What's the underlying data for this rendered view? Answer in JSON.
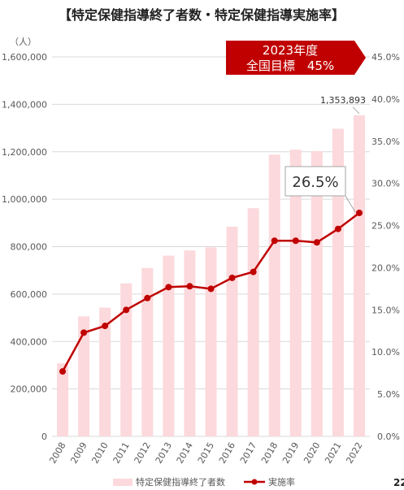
{
  "title": "【特定保健指導終了者数・特定保健指導実施率】",
  "left_unit": "（人）",
  "target_box": {
    "line1": "2023年度",
    "line2": "全国目標　45%"
  },
  "annotation": "26.5%",
  "page_number": "22",
  "colors": {
    "bar": "#fcd9dc",
    "line": "#c00000",
    "target_bg": "#c00000",
    "grid": "#d9d9d9"
  },
  "chart_data": {
    "type": "bar",
    "categories": [
      "2008",
      "2009",
      "2010",
      "2011",
      "2012",
      "2013",
      "2014",
      "2015",
      "2016",
      "2017",
      "2018",
      "2019",
      "2020",
      "2021",
      "2022"
    ],
    "series": [
      {
        "name": "特定保健指導終了者数",
        "type": "bar",
        "axis": "left",
        "values": [
          308000,
          506000,
          543000,
          645000,
          710000,
          762000,
          784000,
          797000,
          884000,
          962000,
          1188000,
          1209000,
          1203000,
          1297000,
          1353893
        ]
      },
      {
        "name": "実施率",
        "type": "line",
        "axis": "right",
        "values": [
          7.7,
          12.3,
          13.1,
          15.0,
          16.4,
          17.7,
          17.8,
          17.5,
          18.8,
          19.5,
          23.2,
          23.2,
          23.0,
          24.6,
          26.5
        ]
      }
    ],
    "left_axis": {
      "ylim": [
        0,
        1600000
      ],
      "ticks": [
        "0",
        "200,000",
        "400,000",
        "600,000",
        "800,000",
        "1,000,000",
        "1,200,000",
        "1,400,000",
        "1,600,000"
      ]
    },
    "right_axis": {
      "ylim": [
        0,
        45
      ],
      "ticks": [
        "0.0%",
        "5.0%",
        "10.0%",
        "15.0%",
        "20.0%",
        "25.0%",
        "30.0%",
        "35.0%",
        "40.0%",
        "45.0%"
      ]
    },
    "data_labels": [
      {
        "category": "2022",
        "series": "特定保健指導終了者数",
        "text": "1,353,893"
      }
    ],
    "grid": true,
    "legend": "bottom"
  }
}
